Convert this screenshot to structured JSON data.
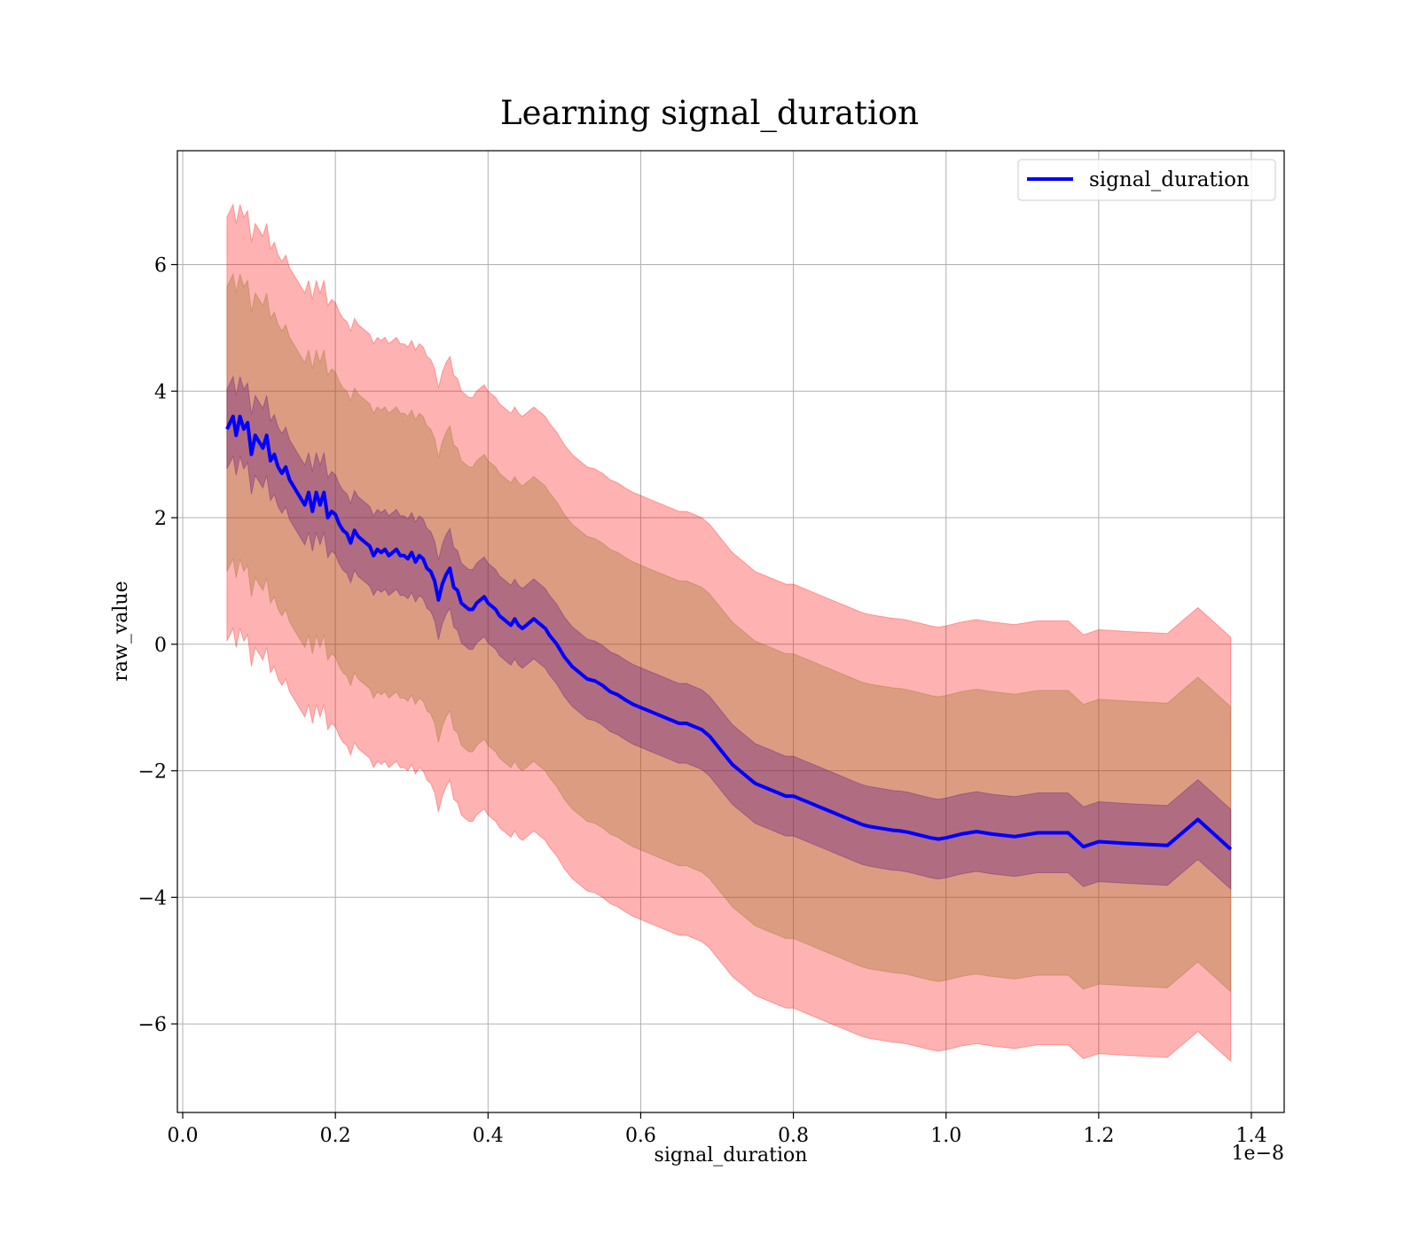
{
  "chart_data": {
    "type": "line",
    "title": "Learning signal_duration",
    "xlabel": "signal_duration",
    "ylabel": "raw_value",
    "x_offset_label": "1e−8",
    "xlim": [
      -0.007,
      1.443
    ],
    "ylim": [
      -7.4,
      7.8
    ],
    "xticks": [
      0.0,
      0.2,
      0.4,
      0.6,
      0.8,
      1.0,
      1.2,
      1.4
    ],
    "xtick_labels": [
      "0.0",
      "0.2",
      "0.4",
      "0.6",
      "0.8",
      "1.0",
      "1.2",
      "1.4"
    ],
    "yticks": [
      -6,
      -4,
      -2,
      0,
      2,
      4,
      6
    ],
    "ytick_labels": [
      "−6",
      "−4",
      "−2",
      "0",
      "2",
      "4",
      "6"
    ],
    "grid": true,
    "legend_position": "top-right",
    "series": [
      {
        "name": "signal_duration",
        "color": "#0000ff",
        "x": [
          0.058,
          0.062,
          0.066,
          0.07,
          0.075,
          0.08,
          0.085,
          0.09,
          0.095,
          0.1,
          0.105,
          0.11,
          0.115,
          0.12,
          0.125,
          0.13,
          0.135,
          0.14,
          0.145,
          0.15,
          0.155,
          0.16,
          0.165,
          0.17,
          0.175,
          0.18,
          0.185,
          0.19,
          0.195,
          0.2,
          0.205,
          0.21,
          0.215,
          0.22,
          0.225,
          0.23,
          0.235,
          0.24,
          0.245,
          0.25,
          0.255,
          0.26,
          0.265,
          0.27,
          0.275,
          0.28,
          0.285,
          0.29,
          0.295,
          0.3,
          0.305,
          0.31,
          0.315,
          0.32,
          0.325,
          0.33,
          0.335,
          0.34,
          0.345,
          0.35,
          0.355,
          0.36,
          0.365,
          0.37,
          0.375,
          0.38,
          0.385,
          0.39,
          0.395,
          0.4,
          0.405,
          0.41,
          0.415,
          0.42,
          0.425,
          0.43,
          0.435,
          0.44,
          0.445,
          0.45,
          0.455,
          0.46,
          0.465,
          0.47,
          0.475,
          0.48,
          0.49,
          0.5,
          0.51,
          0.52,
          0.53,
          0.54,
          0.55,
          0.56,
          0.57,
          0.58,
          0.59,
          0.6,
          0.61,
          0.62,
          0.63,
          0.64,
          0.65,
          0.66,
          0.67,
          0.68,
          0.69,
          0.7,
          0.71,
          0.72,
          0.73,
          0.74,
          0.75,
          0.76,
          0.77,
          0.78,
          0.79,
          0.8,
          0.81,
          0.82,
          0.83,
          0.84,
          0.85,
          0.86,
          0.87,
          0.88,
          0.89,
          0.9,
          0.91,
          0.92,
          0.93,
          0.94,
          0.95,
          0.96,
          0.97,
          0.98,
          0.99,
          1.0,
          1.01,
          1.02,
          1.04,
          1.06,
          1.09,
          1.12,
          1.16,
          1.18,
          1.2,
          1.24,
          1.29,
          1.33,
          1.373
        ],
        "values": [
          3.4,
          3.5,
          3.6,
          3.3,
          3.6,
          3.4,
          3.5,
          3.0,
          3.3,
          3.2,
          3.1,
          3.3,
          2.9,
          3.0,
          2.8,
          2.7,
          2.8,
          2.6,
          2.5,
          2.4,
          2.3,
          2.2,
          2.4,
          2.1,
          2.4,
          2.2,
          2.4,
          2.0,
          2.1,
          2.05,
          1.9,
          1.8,
          1.75,
          1.6,
          1.8,
          1.7,
          1.65,
          1.6,
          1.55,
          1.4,
          1.5,
          1.45,
          1.5,
          1.4,
          1.45,
          1.5,
          1.4,
          1.4,
          1.35,
          1.45,
          1.3,
          1.4,
          1.35,
          1.2,
          1.15,
          1.0,
          0.7,
          0.95,
          1.1,
          1.2,
          0.9,
          0.85,
          0.65,
          0.6,
          0.55,
          0.55,
          0.65,
          0.7,
          0.75,
          0.65,
          0.6,
          0.55,
          0.45,
          0.4,
          0.35,
          0.3,
          0.4,
          0.3,
          0.25,
          0.3,
          0.35,
          0.4,
          0.35,
          0.3,
          0.25,
          0.15,
          0.0,
          -0.2,
          -0.35,
          -0.45,
          -0.55,
          -0.58,
          -0.65,
          -0.75,
          -0.8,
          -0.88,
          -0.95,
          -1.0,
          -1.05,
          -1.1,
          -1.15,
          -1.2,
          -1.25,
          -1.25,
          -1.3,
          -1.35,
          -1.45,
          -1.6,
          -1.75,
          -1.9,
          -2.0,
          -2.1,
          -2.2,
          -2.25,
          -2.3,
          -2.35,
          -2.4,
          -2.4,
          -2.45,
          -2.5,
          -2.55,
          -2.6,
          -2.65,
          -2.7,
          -2.75,
          -2.8,
          -2.85,
          -2.88,
          -2.9,
          -2.92,
          -2.94,
          -2.95,
          -2.97,
          -3.0,
          -3.03,
          -3.06,
          -3.08,
          -3.06,
          -3.03,
          -3.0,
          -2.96,
          -3.0,
          -3.04,
          -2.98,
          -2.98,
          -3.2,
          -3.12,
          -3.15,
          -3.18,
          -2.77,
          -3.24
        ]
      }
    ],
    "bands": [
      {
        "color": "#ff0000",
        "opacity": 0.3,
        "half_width": 3.35
      },
      {
        "color": "#8b6914",
        "opacity": 0.3,
        "half_width": 2.25
      },
      {
        "color": "#4b0082",
        "opacity": 0.3,
        "half_width": 0.63
      }
    ]
  }
}
